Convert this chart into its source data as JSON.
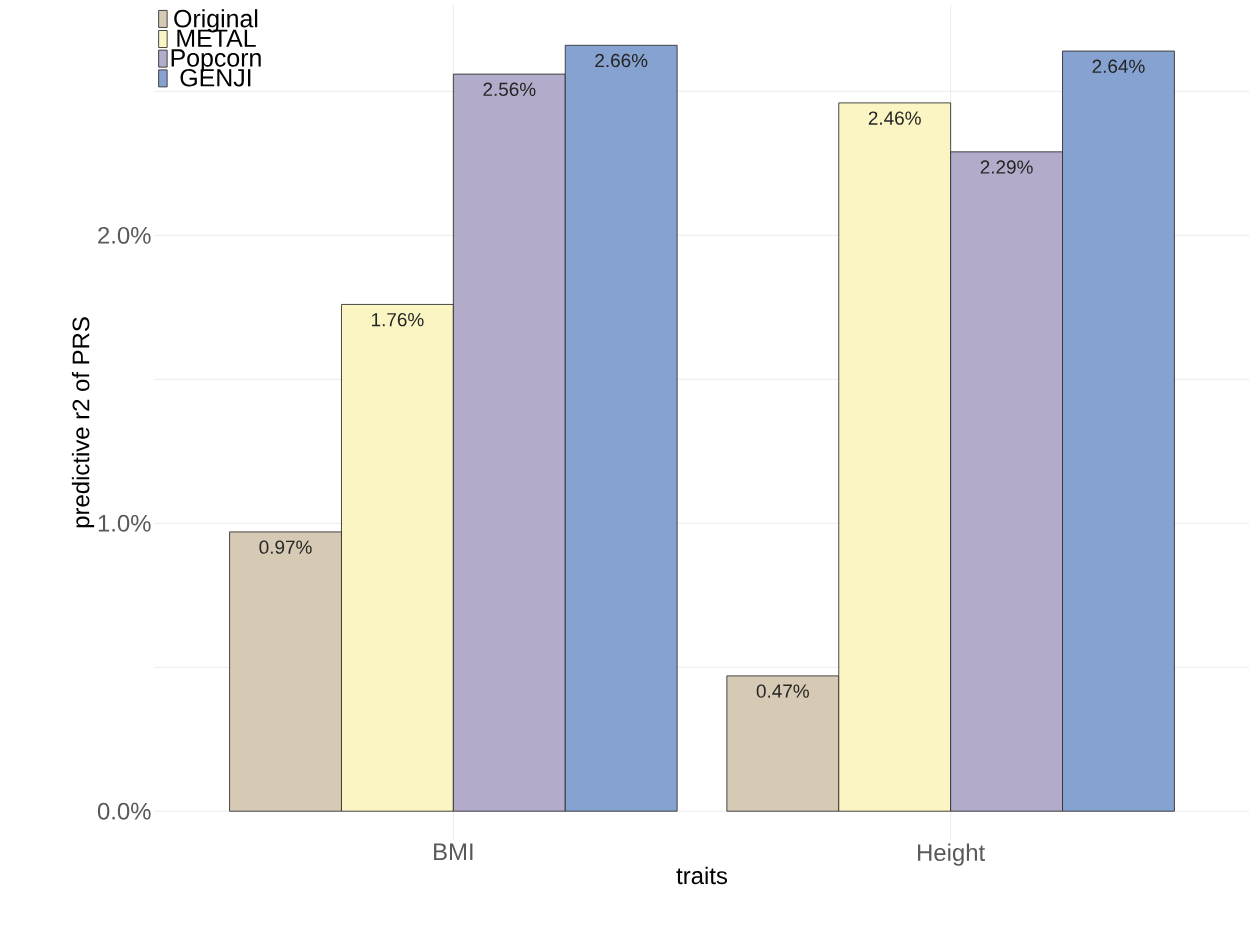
{
  "chart_data": {
    "type": "bar",
    "xlabel": "traits",
    "ylabel": "predictive r2 of PRS",
    "categories": [
      "BMI",
      "Height"
    ],
    "series": [
      {
        "name": "Original",
        "color": "#d4c7b1",
        "values": [
          0.97,
          0.47
        ],
        "value_labels": [
          "0.97%",
          "0.47%"
        ]
      },
      {
        "name": "METAL",
        "color": "#faf4c0",
        "values": [
          1.76,
          2.46
        ],
        "value_labels": [
          "1.76%",
          "2.46%"
        ]
      },
      {
        "name": "Popcorn",
        "color": "#aea7c6",
        "values": [
          2.56,
          2.29
        ],
        "value_labels": [
          "2.56%",
          "2.29%"
        ]
      },
      {
        "name": "GENJI",
        "color": "#7f9dcd",
        "values": [
          2.66,
          2.64
        ],
        "value_labels": [
          "2.66%",
          "2.64%"
        ]
      }
    ],
    "ylim": [
      -0.1,
      2.8
    ],
    "yticks": [
      {
        "value": 0,
        "label": "0.0%"
      },
      {
        "value": 0.5,
        "label": null
      },
      {
        "value": 1,
        "label": "1.0%"
      },
      {
        "value": 1.5,
        "label": null
      },
      {
        "value": 2,
        "label": "2.0%"
      },
      {
        "value": 2.5,
        "label": null
      }
    ],
    "grid": true,
    "legend": "top left"
  }
}
